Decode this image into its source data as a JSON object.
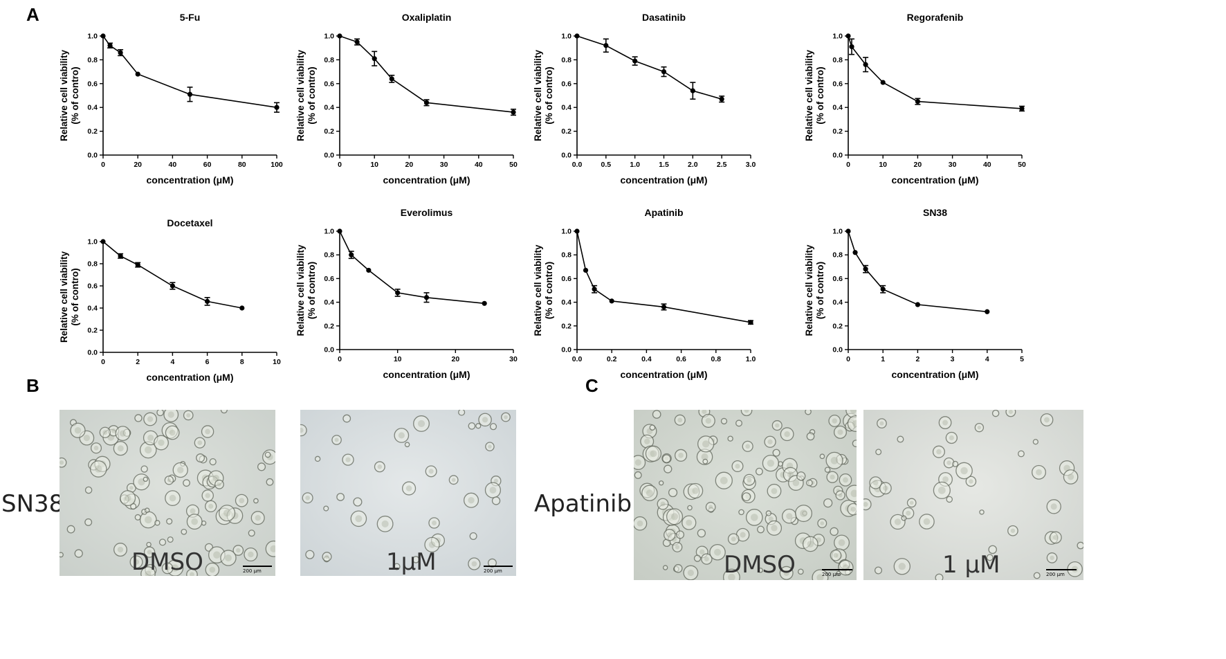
{
  "panel_labels": {
    "a": "A",
    "b": "B",
    "c": "C"
  },
  "chart_data": [
    {
      "type": "line",
      "title": "5-Fu",
      "xlabel": "concentration (μM)",
      "ylabel": [
        "Relative cell viability",
        "(% of contro)"
      ],
      "xlim": [
        0,
        100
      ],
      "xticks": [
        0,
        20,
        40,
        60,
        80,
        100
      ],
      "xtick_labels": [
        "0",
        "20",
        "40",
        "60",
        "80",
        "100"
      ],
      "ylim": [
        0,
        1.0
      ],
      "yticks": [
        0,
        0.2,
        0.4,
        0.6,
        0.8,
        1.0
      ],
      "ytick_labels": [
        "0.0",
        "0.2",
        "0.4",
        "0.6",
        "0.8",
        "1.0"
      ],
      "x": [
        0,
        4,
        10,
        20,
        50,
        100
      ],
      "y": [
        1.0,
        0.92,
        0.86,
        0.68,
        0.51,
        0.4
      ],
      "err": [
        0,
        0.02,
        0.025,
        0,
        0.06,
        0.04
      ]
    },
    {
      "type": "line",
      "title": "Oxaliplatin",
      "xlabel": "concentration (μM)",
      "ylabel": [
        "Relative cell viability",
        "(% of contro)"
      ],
      "xlim": [
        0,
        50
      ],
      "xticks": [
        0,
        10,
        20,
        30,
        40,
        50
      ],
      "xtick_labels": [
        "0",
        "10",
        "20",
        "30",
        "40",
        "50"
      ],
      "ylim": [
        0,
        1.0
      ],
      "yticks": [
        0,
        0.2,
        0.4,
        0.6,
        0.8,
        1.0
      ],
      "ytick_labels": [
        "0.0",
        "0.2",
        "0.4",
        "0.6",
        "0.8",
        "1.0"
      ],
      "x": [
        0,
        5,
        10,
        15,
        25,
        50
      ],
      "y": [
        1.0,
        0.95,
        0.81,
        0.64,
        0.44,
        0.36
      ],
      "err": [
        0,
        0.025,
        0.06,
        0.03,
        0.025,
        0.025
      ]
    },
    {
      "type": "line",
      "title": "Dasatinib",
      "xlabel": "concentration (μM)",
      "ylabel": [
        "Relative cell viability",
        "(% of contro)"
      ],
      "xlim": [
        0,
        3.0
      ],
      "xticks": [
        0,
        0.5,
        1.0,
        1.5,
        2.0,
        2.5,
        3.0
      ],
      "xtick_labels": [
        "0.0",
        "0.5",
        "1.0",
        "1.5",
        "2.0",
        "2.5",
        "3.0"
      ],
      "ylim": [
        0,
        1.0
      ],
      "yticks": [
        0,
        0.2,
        0.4,
        0.6,
        0.8,
        1.0
      ],
      "ytick_labels": [
        "0.0",
        "0.2",
        "0.4",
        "0.6",
        "0.8",
        "1.0"
      ],
      "x": [
        0,
        0.5,
        1.0,
        1.5,
        2.0,
        2.5
      ],
      "y": [
        1.0,
        0.92,
        0.79,
        0.7,
        0.54,
        0.47
      ],
      "err": [
        0,
        0.055,
        0.035,
        0.04,
        0.07,
        0.025
      ]
    },
    {
      "type": "line",
      "title": "Regorafenib",
      "xlabel": "concentration (μM)",
      "ylabel": [
        "Relative cell viability",
        "(% of contro)"
      ],
      "xlim": [
        0,
        50
      ],
      "xticks": [
        0,
        10,
        20,
        30,
        40,
        50
      ],
      "xtick_labels": [
        "0",
        "10",
        "20",
        "30",
        "40",
        "50"
      ],
      "ylim": [
        0,
        1.0
      ],
      "yticks": [
        0,
        0.2,
        0.4,
        0.6,
        0.8,
        1.0
      ],
      "ytick_labels": [
        "0.0",
        "0.2",
        "0.4",
        "0.6",
        "0.8",
        "1.0"
      ],
      "x": [
        0,
        1,
        5,
        10,
        20,
        50
      ],
      "y": [
        1.0,
        0.91,
        0.76,
        0.61,
        0.45,
        0.39
      ],
      "err": [
        0,
        0.065,
        0.06,
        0,
        0.025,
        0.02
      ]
    },
    {
      "type": "line",
      "title": "Docetaxel",
      "xlabel": "concentration (μM)",
      "ylabel": [
        "Relative cell viability",
        "(% of contro)"
      ],
      "xlim": [
        0,
        10
      ],
      "xticks": [
        0,
        2,
        4,
        6,
        8,
        10
      ],
      "xtick_labels": [
        "0",
        "2",
        "4",
        "6",
        "8",
        "10"
      ],
      "ylim": [
        0,
        1.0
      ],
      "yticks": [
        0,
        0.2,
        0.4,
        0.6,
        0.8,
        1.0
      ],
      "ytick_labels": [
        "0.0",
        "0.2",
        "0.4",
        "0.6",
        "0.8",
        "1.0"
      ],
      "x": [
        0,
        1,
        2,
        4,
        6,
        8
      ],
      "y": [
        1.0,
        0.87,
        0.79,
        0.6,
        0.46,
        0.4
      ],
      "err": [
        0,
        0.02,
        0.02,
        0.03,
        0.035,
        0
      ]
    },
    {
      "type": "line",
      "title": "Everolimus",
      "xlabel": "concentration (μM)",
      "ylabel": [
        "Relative cell viability",
        "(% of contro)"
      ],
      "xlim": [
        0,
        30
      ],
      "xticks": [
        0,
        10,
        20,
        30
      ],
      "xtick_labels": [
        "0",
        "10",
        "20",
        "30"
      ],
      "ylim": [
        0,
        1.0
      ],
      "yticks": [
        0,
        0.2,
        0.4,
        0.6,
        0.8,
        1.0
      ],
      "ytick_labels": [
        "0.0",
        "0.2",
        "0.4",
        "0.6",
        "0.8",
        "1.0"
      ],
      "x": [
        0,
        2,
        5,
        10,
        15,
        25
      ],
      "y": [
        1.0,
        0.8,
        0.67,
        0.48,
        0.44,
        0.39
      ],
      "err": [
        0,
        0.03,
        0,
        0.03,
        0.04,
        0
      ]
    },
    {
      "type": "line",
      "title": "Apatinib",
      "xlabel": "concentration (μM)",
      "ylabel": [
        "Relative cell viability",
        "(% of contro)"
      ],
      "xlim": [
        0,
        1.0
      ],
      "xticks": [
        0,
        0.2,
        0.4,
        0.6,
        0.8,
        1.0
      ],
      "xtick_labels": [
        "0.0",
        "0.2",
        "0.4",
        "0.6",
        "0.8",
        "1.0"
      ],
      "ylim": [
        0,
        1.0
      ],
      "yticks": [
        0,
        0.2,
        0.4,
        0.6,
        0.8,
        1.0
      ],
      "ytick_labels": [
        "0.0",
        "0.2",
        "0.4",
        "0.6",
        "0.8",
        "1.0"
      ],
      "x": [
        0,
        0.05,
        0.1,
        0.2,
        0.5,
        1.0
      ],
      "y": [
        1.0,
        0.67,
        0.51,
        0.41,
        0.36,
        0.23
      ],
      "err": [
        0,
        0,
        0.03,
        0,
        0.025,
        0.015
      ]
    },
    {
      "type": "line",
      "title": "SN38",
      "xlabel": "concentration (μM)",
      "ylabel": [
        "Relative cell viability",
        "(% of contro)"
      ],
      "xlim": [
        0,
        5
      ],
      "xticks": [
        0,
        1,
        2,
        3,
        4,
        5
      ],
      "xtick_labels": [
        "0",
        "1",
        "2",
        "3",
        "4",
        "5"
      ],
      "ylim": [
        0,
        1.0
      ],
      "yticks": [
        0,
        0.2,
        0.4,
        0.6,
        0.8,
        1.0
      ],
      "ytick_labels": [
        "0.0",
        "0.2",
        "0.4",
        "0.6",
        "0.8",
        "1.0"
      ],
      "x": [
        0,
        0.2,
        0.5,
        1,
        2,
        4
      ],
      "y": [
        1.0,
        0.82,
        0.68,
        0.51,
        0.38,
        0.32
      ],
      "err": [
        0,
        0,
        0.03,
        0.03,
        0,
        0
      ]
    }
  ],
  "micrographs": {
    "b": {
      "row_label": "SN38",
      "control_label": "DMSO",
      "treated_label": "1μM",
      "scale_label": "200 μm"
    },
    "c": {
      "row_label": "Apatinib",
      "control_label": "DMSO",
      "treated_label": "1 μM",
      "scale_label": "200 μm"
    }
  }
}
